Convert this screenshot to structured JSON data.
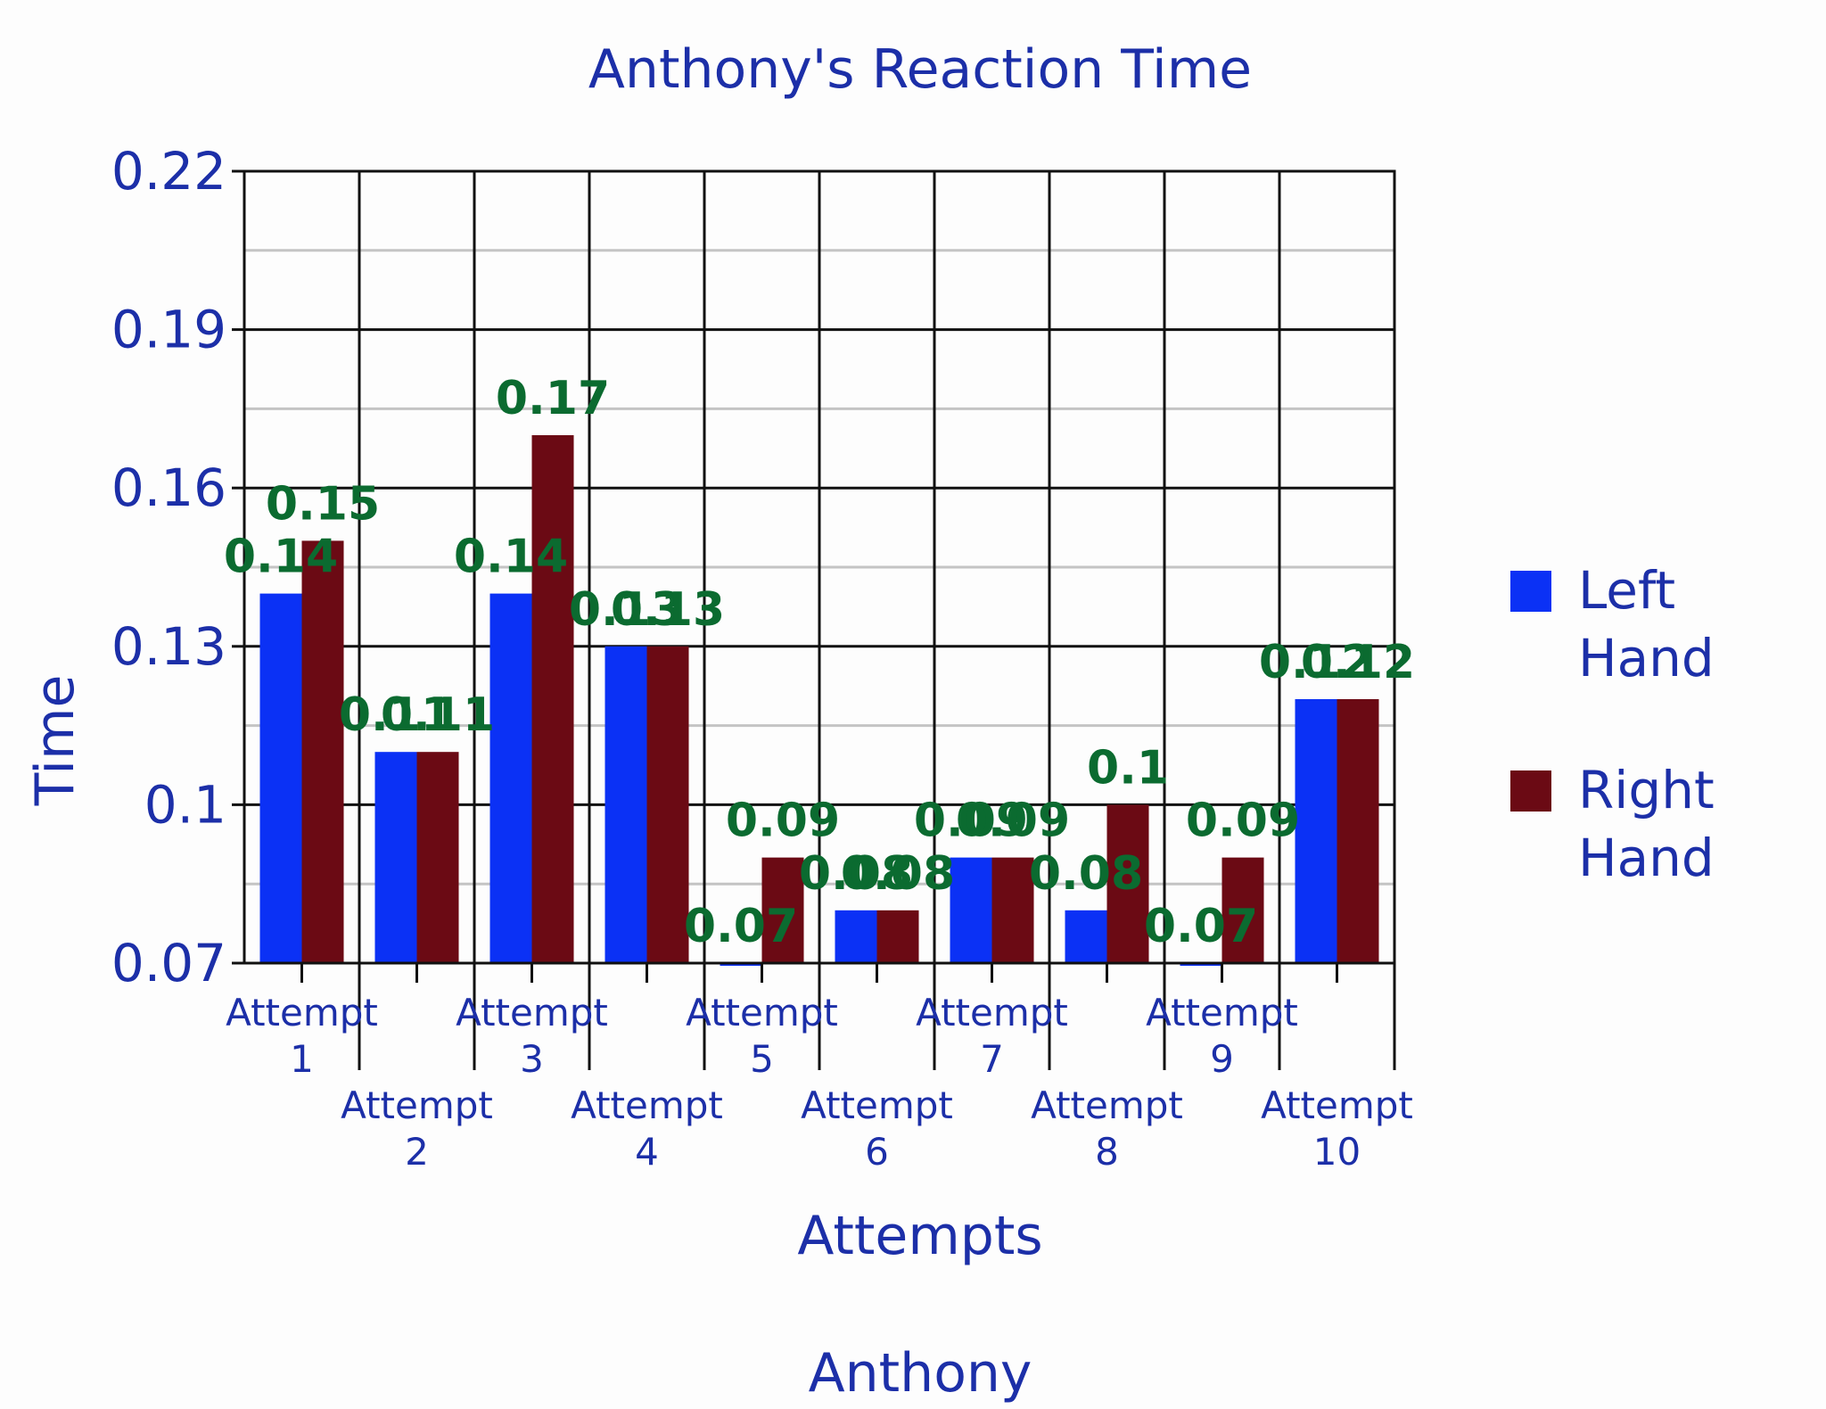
{
  "colors": {
    "left_hand": "#0b31f5",
    "right_hand": "#6b0a14",
    "text": "#1c2fa8",
    "data_label": "#0b6b30"
  },
  "chart_data": {
    "type": "bar",
    "title": "Anthony's Reaction Time",
    "xlabel": "Attempts",
    "ylabel": "Time",
    "footer": "Anthony",
    "categories": [
      [
        "Attempt",
        "1"
      ],
      [
        "Attempt",
        "2"
      ],
      [
        "Attempt",
        "3"
      ],
      [
        "Attempt",
        "4"
      ],
      [
        "Attempt",
        "5"
      ],
      [
        "Attempt",
        "6"
      ],
      [
        "Attempt",
        "7"
      ],
      [
        "Attempt",
        "8"
      ],
      [
        "Attempt",
        "9"
      ],
      [
        "Attempt",
        "10"
      ]
    ],
    "ylim": [
      0.07,
      0.22
    ],
    "yticks": [
      "0.07",
      "0.1",
      "0.13",
      "0.16",
      "0.19",
      "0.22"
    ],
    "grid": true,
    "legend_position": "right",
    "series": [
      {
        "name": "Left Hand",
        "legend_lines": [
          "Left",
          "Hand"
        ],
        "values": [
          0.14,
          0.11,
          0.14,
          0.13,
          0.07,
          0.08,
          0.09,
          0.08,
          0.07,
          0.12
        ],
        "labels": [
          "0.14",
          "0.11",
          "0.14",
          "0.13",
          "0.07",
          "0.08",
          "0.09",
          "0.08",
          "0.07",
          "0.12"
        ]
      },
      {
        "name": "Right Hand",
        "legend_lines": [
          "Right",
          "Hand"
        ],
        "values": [
          0.15,
          0.11,
          0.17,
          0.13,
          0.09,
          0.08,
          0.09,
          0.1,
          0.09,
          0.12
        ],
        "labels": [
          "0.15",
          "0.11",
          "0.17",
          "0.13",
          "0.09",
          "0.08",
          "0.09",
          "0.1",
          "0.09",
          "0.12"
        ]
      }
    ]
  }
}
